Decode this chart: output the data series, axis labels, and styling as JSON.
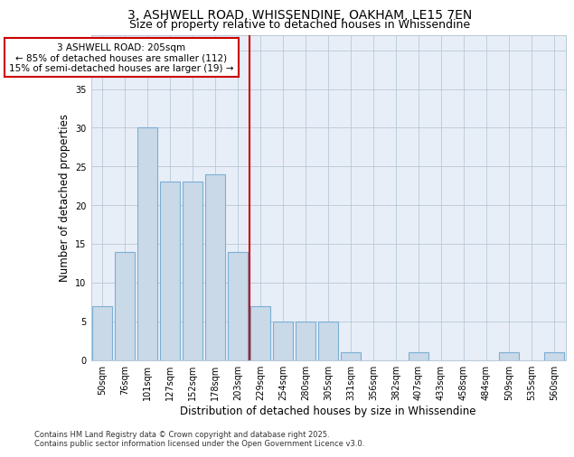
{
  "title1": "3, ASHWELL ROAD, WHISSENDINE, OAKHAM, LE15 7EN",
  "title2": "Size of property relative to detached houses in Whissendine",
  "xlabel": "Distribution of detached houses by size in Whissendine",
  "ylabel": "Number of detached properties",
  "categories": [
    "50sqm",
    "76sqm",
    "101sqm",
    "127sqm",
    "152sqm",
    "178sqm",
    "203sqm",
    "229sqm",
    "254sqm",
    "280sqm",
    "305sqm",
    "331sqm",
    "356sqm",
    "382sqm",
    "407sqm",
    "433sqm",
    "458sqm",
    "484sqm",
    "509sqm",
    "535sqm",
    "560sqm"
  ],
  "values": [
    7,
    14,
    30,
    23,
    23,
    24,
    14,
    7,
    5,
    5,
    5,
    1,
    0,
    0,
    1,
    0,
    0,
    0,
    1,
    0,
    1
  ],
  "bar_color": "#c9d9e8",
  "bar_edge_color": "#7bafd4",
  "vline_x": 6.5,
  "vline_color": "#cc0000",
  "annotation_text": "3 ASHWELL ROAD: 205sqm\n← 85% of detached houses are smaller (112)\n15% of semi-detached houses are larger (19) →",
  "annotation_box_color": "#ffffff",
  "annotation_box_edge": "#cc0000",
  "ylim": [
    0,
    42
  ],
  "yticks": [
    0,
    5,
    10,
    15,
    20,
    25,
    30,
    35,
    40
  ],
  "background_color": "#e8eef7",
  "footer_text": "Contains HM Land Registry data © Crown copyright and database right 2025.\nContains public sector information licensed under the Open Government Licence v3.0.",
  "title1_fontsize": 10,
  "title2_fontsize": 9,
  "xlabel_fontsize": 8.5,
  "ylabel_fontsize": 8.5,
  "tick_fontsize": 7,
  "annotation_fontsize": 7.5,
  "footer_fontsize": 6
}
